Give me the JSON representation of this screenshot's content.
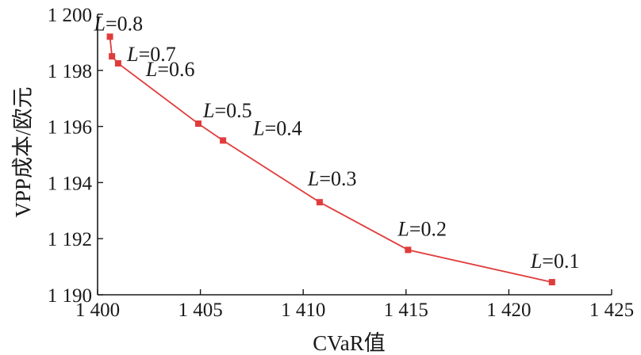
{
  "chart_data": {
    "type": "line",
    "title": "",
    "xlabel": "CVaR值",
    "ylabel": "VPP成本/欧元",
    "xlim": [
      1400,
      1425
    ],
    "ylim": [
      1190,
      1200
    ],
    "x_ticks": [
      1400,
      1405,
      1410,
      1415,
      1420,
      1425
    ],
    "x_tick_labels": [
      "1 400",
      "1 405",
      "1 410",
      "1 415",
      "1 420",
      "1 425"
    ],
    "y_ticks": [
      1190,
      1192,
      1194,
      1196,
      1198,
      1200
    ],
    "y_tick_labels": [
      "1 190",
      "1 192",
      "1 194",
      "1 196",
      "1 198",
      "1 200"
    ],
    "grid": false,
    "colors": {
      "series": "#e03c3c",
      "axis": "#1a1a1a"
    },
    "series": [
      {
        "marker": "square",
        "points": [
          {
            "x": 1400.6,
            "y": 1199.2,
            "label_var": "L",
            "label_val": "=0.8"
          },
          {
            "x": 1400.7,
            "y": 1198.5,
            "label_var": "L",
            "label_val": "=0.7"
          },
          {
            "x": 1401.0,
            "y": 1198.25,
            "label_var": "L",
            "label_val": "=0.6"
          },
          {
            "x": 1404.9,
            "y": 1196.1,
            "label_var": "L",
            "label_val": "=0.5"
          },
          {
            "x": 1406.1,
            "y": 1195.5,
            "label_var": "L",
            "label_val": "=0.4"
          },
          {
            "x": 1410.8,
            "y": 1193.3,
            "label_var": "L",
            "label_val": "=0.3"
          },
          {
            "x": 1415.1,
            "y": 1191.6,
            "label_var": "L",
            "label_val": "=0.2"
          },
          {
            "x": 1422.1,
            "y": 1190.45,
            "label_var": "L",
            "label_val": "=0.1"
          }
        ]
      }
    ]
  }
}
